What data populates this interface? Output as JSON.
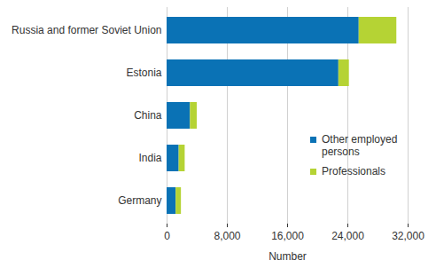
{
  "chart_data": {
    "type": "bar",
    "orientation": "horizontal",
    "stacked": true,
    "categories": [
      "Russia and former Soviet Union",
      "Estonia",
      "China",
      "India",
      "Germany"
    ],
    "series": [
      {
        "name": "Other employed persons",
        "color": "#0a72b5",
        "values": [
          25500,
          22800,
          3100,
          1600,
          1200
        ]
      },
      {
        "name": "Professionals",
        "color": "#b5d334",
        "values": [
          5000,
          1400,
          900,
          800,
          700
        ]
      }
    ],
    "xlabel": "Number",
    "xlim": [
      0,
      32000
    ],
    "xticks": [
      0,
      {
        "value": 8000,
        "label": "8,000"
      },
      {
        "value": 16000,
        "label": "16,000"
      },
      {
        "value": 24000,
        "label": "24,000"
      },
      {
        "value": 32000,
        "label": "32,000"
      }
    ],
    "grid": true,
    "legend": "right"
  }
}
